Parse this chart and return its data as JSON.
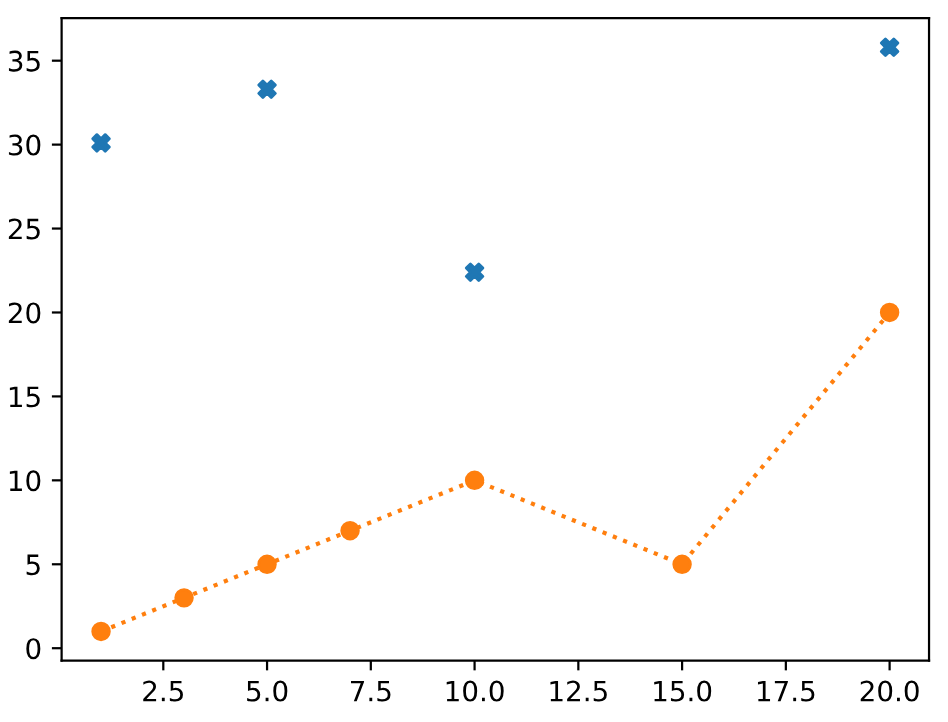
{
  "chart_data": {
    "type": "line",
    "series": [
      {
        "type": "scatter",
        "color": "#1f77b4",
        "marker": "cross",
        "x": [
          1,
          5,
          10,
          20
        ],
        "values": [
          30.1,
          33.3,
          22.4,
          35.8
        ]
      },
      {
        "color": "#ff7f0e",
        "marker": "circle",
        "line_style": "dotted",
        "x": [
          1,
          3,
          5,
          7,
          10,
          15,
          20
        ],
        "values": [
          1,
          3,
          5,
          7,
          10,
          5,
          20
        ]
      }
    ],
    "xlim": [
      0.05,
      20.95
    ],
    "ylim": [
      -0.74,
      37.54
    ],
    "xticks": [
      {
        "value": 2.5,
        "label": "2.5"
      },
      {
        "value": 5,
        "label": "5.0"
      },
      {
        "value": 7.5,
        "label": "7.5"
      },
      {
        "value": 10,
        "label": "10.0"
      },
      {
        "value": 12.5,
        "label": "12.5"
      },
      {
        "value": 15,
        "label": "15.0"
      },
      {
        "value": 17.5,
        "label": "17.5"
      },
      {
        "value": 20,
        "label": "20.0"
      }
    ],
    "yticks": [
      0,
      5,
      10,
      15,
      20,
      25,
      30,
      35
    ],
    "grid": false
  }
}
